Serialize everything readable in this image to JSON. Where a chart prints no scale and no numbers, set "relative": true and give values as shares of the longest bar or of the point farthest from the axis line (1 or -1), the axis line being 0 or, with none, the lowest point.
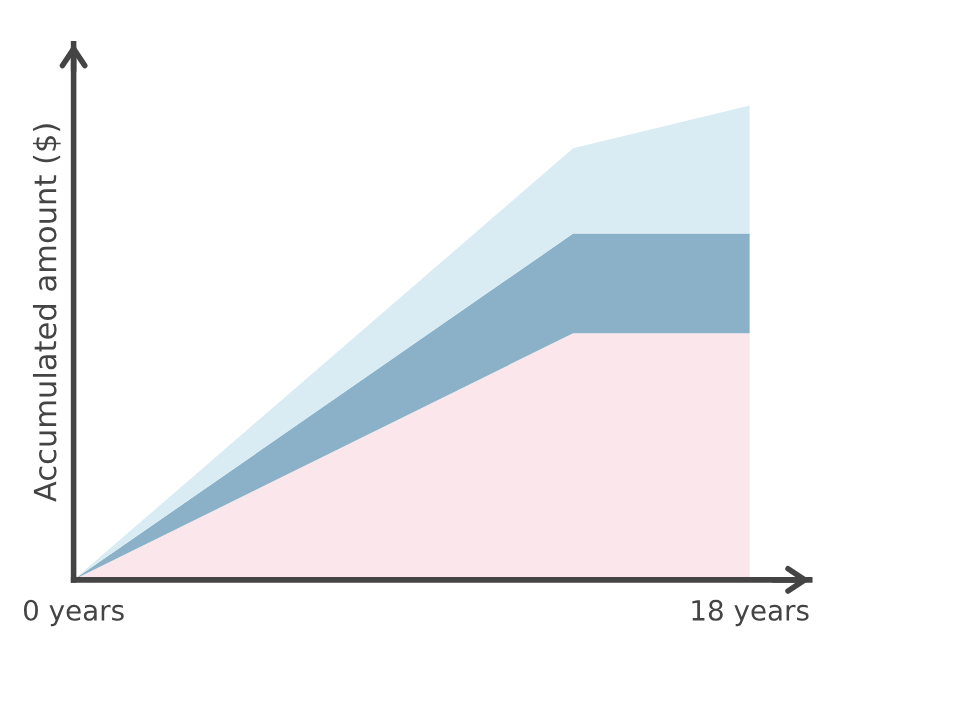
{
  "chart_data": {
    "type": "area",
    "stacked": true,
    "relative": true,
    "ylabel": "Accumulated amount ($)",
    "x": [
      0,
      13.3,
      18
    ],
    "xlim": [
      0,
      19.6
    ],
    "xticks": [
      {
        "value": 0,
        "label": "0 years"
      },
      {
        "value": 18,
        "label": "18 years"
      }
    ],
    "tick_labels": "x",
    "grid": false,
    "legend": false,
    "series": [
      {
        "color": "#fbe6ec",
        "values": [
          0,
          0.52,
          0.52
        ]
      },
      {
        "color": "#8ab1c8",
        "values": [
          0,
          0.21,
          0.21
        ]
      },
      {
        "color": "#d9ecf3",
        "values": [
          0,
          0.18,
          0.27
        ]
      }
    ]
  }
}
